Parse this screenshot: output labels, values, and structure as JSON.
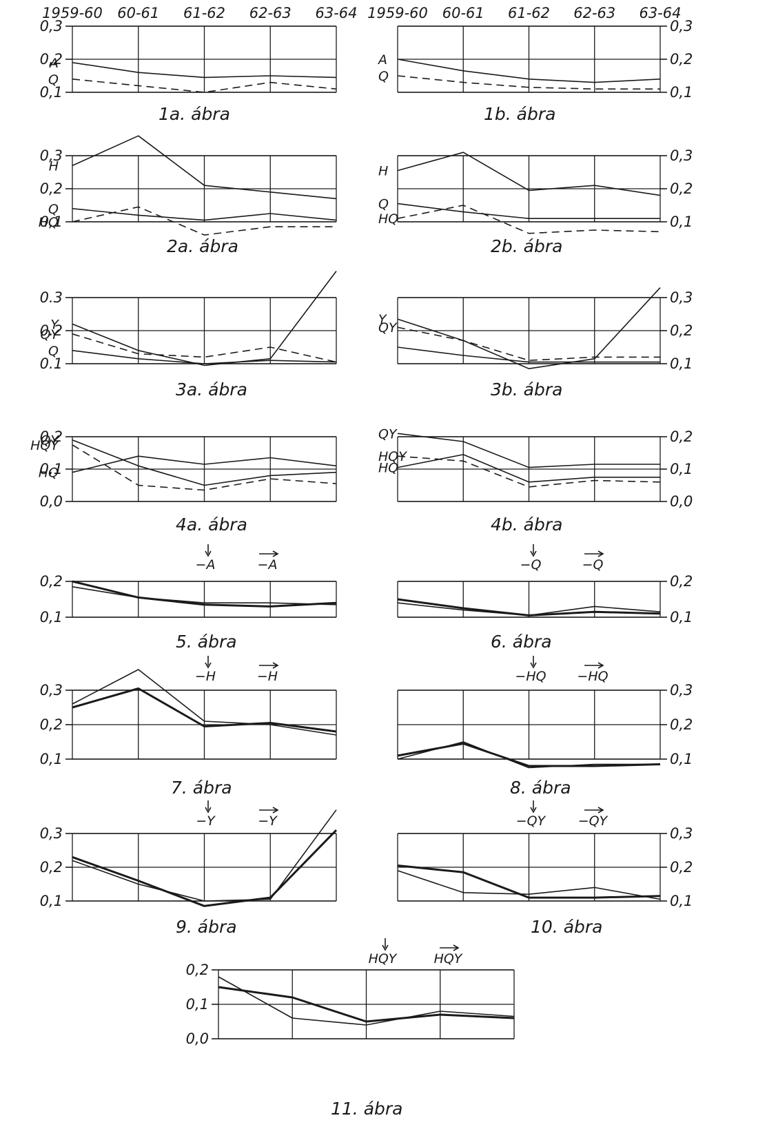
{
  "chart_data": [
    {
      "id": "1a",
      "type": "line",
      "caption": "1a. ábra",
      "x_labels": [
        "1959-60",
        "60-61",
        "61-62",
        "62-63",
        "63-64"
      ],
      "ylim": [
        0.1,
        0.3
      ],
      "y_ticks": [
        "0,1",
        "0,2",
        "0,3"
      ],
      "axis_side": "left",
      "series": [
        {
          "name": "A",
          "style": "solid",
          "values": [
            0.19,
            0.16,
            0.145,
            0.15,
            0.145
          ]
        },
        {
          "name": "Q",
          "style": "dashed",
          "values": [
            0.14,
            0.12,
            0.1,
            0.13,
            0.11
          ]
        }
      ]
    },
    {
      "id": "1b",
      "type": "line",
      "caption": "1b. ábra",
      "x_labels": [
        "1959-60",
        "60-61",
        "61-62",
        "62-63",
        "63-64"
      ],
      "ylim": [
        0.1,
        0.3
      ],
      "y_ticks": [
        "0,1",
        "0,2",
        "0,3"
      ],
      "axis_side": "right",
      "series": [
        {
          "name": "A",
          "style": "solid",
          "values": [
            0.2,
            0.165,
            0.14,
            0.13,
            0.14
          ]
        },
        {
          "name": "Q",
          "style": "dashed",
          "values": [
            0.15,
            0.13,
            0.115,
            0.11,
            0.11
          ]
        }
      ]
    },
    {
      "id": "2a",
      "type": "line",
      "caption": "2a. ábra",
      "ylim": [
        0.1,
        0.3
      ],
      "y_ticks": [
        "0,1",
        "0,2",
        "0,3"
      ],
      "axis_side": "left",
      "series": [
        {
          "name": "H",
          "style": "solid",
          "values": [
            0.27,
            0.36,
            0.21,
            0.19,
            0.17
          ]
        },
        {
          "name": "Q",
          "style": "solid",
          "values": [
            0.14,
            0.12,
            0.105,
            0.125,
            0.105
          ]
        },
        {
          "name": "HQ",
          "style": "dashed",
          "values": [
            0.1,
            0.145,
            0.06,
            0.085,
            0.085
          ]
        }
      ]
    },
    {
      "id": "2b",
      "type": "line",
      "caption": "2b. ábra",
      "ylim": [
        0.1,
        0.3
      ],
      "y_ticks": [
        "0,1",
        "0,2",
        "0,3"
      ],
      "axis_side": "right",
      "series": [
        {
          "name": "H",
          "style": "solid",
          "values": [
            0.255,
            0.31,
            0.195,
            0.21,
            0.18
          ]
        },
        {
          "name": "Q",
          "style": "solid",
          "values": [
            0.155,
            0.13,
            0.11,
            0.11,
            0.11
          ]
        },
        {
          "name": "HQ",
          "style": "dashed",
          "values": [
            0.11,
            0.15,
            0.065,
            0.075,
            0.07
          ]
        }
      ]
    },
    {
      "id": "3a",
      "type": "line",
      "caption": "3a. ábra",
      "ylim": [
        0.1,
        0.3
      ],
      "y_ticks": [
        "0.1",
        "0.2",
        "0.3"
      ],
      "axis_side": "left",
      "series": [
        {
          "name": "Y",
          "style": "solid",
          "values": [
            0.22,
            0.14,
            0.095,
            0.115,
            0.38
          ]
        },
        {
          "name": "QY",
          "style": "dashed",
          "values": [
            0.19,
            0.13,
            0.12,
            0.15,
            0.105
          ]
        },
        {
          "name": "Q",
          "style": "solid",
          "values": [
            0.14,
            0.115,
            0.1,
            0.11,
            0.105
          ]
        }
      ]
    },
    {
      "id": "3b",
      "type": "line",
      "caption": "3b. ábra",
      "ylim": [
        0.1,
        0.3
      ],
      "y_ticks": [
        "0,1",
        "0,2",
        "0,3"
      ],
      "axis_side": "right",
      "series": [
        {
          "name": "Y",
          "style": "solid",
          "values": [
            0.235,
            0.17,
            0.085,
            0.115,
            0.33
          ]
        },
        {
          "name": "QY",
          "style": "dashed",
          "values": [
            0.21,
            0.17,
            0.11,
            0.12,
            0.12
          ]
        },
        {
          "name": "",
          "style": "solid",
          "values": [
            0.15,
            0.125,
            0.105,
            0.105,
            0.105
          ]
        }
      ]
    },
    {
      "id": "4a",
      "type": "line",
      "caption": "4a. ábra",
      "ylim": [
        0.0,
        0.2
      ],
      "y_ticks": [
        "0,0",
        "0,1",
        "0,2"
      ],
      "axis_side": "left",
      "series": [
        {
          "name": "QY",
          "style": "solid",
          "values": [
            0.19,
            0.11,
            0.05,
            0.08,
            0.09
          ]
        },
        {
          "name": "HQY",
          "style": "dashed",
          "values": [
            0.175,
            0.05,
            0.035,
            0.07,
            0.055
          ]
        },
        {
          "name": "HQ",
          "style": "solid",
          "values": [
            0.09,
            0.14,
            0.115,
            0.135,
            0.11
          ]
        }
      ]
    },
    {
      "id": "4b",
      "type": "line",
      "caption": "4b. ábra",
      "ylim": [
        0.0,
        0.2
      ],
      "y_ticks": [
        "0,0",
        "0,1",
        "0,2"
      ],
      "axis_side": "right",
      "series": [
        {
          "name": "QY",
          "style": "solid",
          "values": [
            0.21,
            0.185,
            0.105,
            0.115,
            0.115
          ]
        },
        {
          "name": "HQY",
          "style": "dashed",
          "values": [
            0.14,
            0.125,
            0.045,
            0.065,
            0.06
          ]
        },
        {
          "name": "HQ",
          "style": "solid",
          "values": [
            0.105,
            0.145,
            0.06,
            0.075,
            0.075
          ]
        }
      ]
    },
    {
      "id": "5",
      "type": "line",
      "caption": "5. ábra",
      "ylim": [
        0.1,
        0.2
      ],
      "y_ticks": [
        "0,1",
        "0,2"
      ],
      "axis_side": "left",
      "header_labels": [
        "−A",
        "−A"
      ],
      "series": [
        {
          "name": "−A (↓)",
          "style": "thin",
          "values": [
            0.185,
            0.155,
            0.14,
            0.14,
            0.135
          ]
        },
        {
          "name": "−A (→)",
          "style": "thick",
          "values": [
            0.2,
            0.155,
            0.135,
            0.13,
            0.14
          ]
        }
      ]
    },
    {
      "id": "6",
      "type": "line",
      "caption": "6. ábra",
      "ylim": [
        0.1,
        0.2
      ],
      "y_ticks": [
        "0,1",
        "0,2"
      ],
      "axis_side": "right",
      "header_labels": [
        "−Q",
        "−Q"
      ],
      "series": [
        {
          "name": "−Q (↓)",
          "style": "thin",
          "values": [
            0.14,
            0.12,
            0.105,
            0.13,
            0.115
          ]
        },
        {
          "name": "−Q (→)",
          "style": "thick",
          "values": [
            0.15,
            0.125,
            0.105,
            0.115,
            0.11
          ]
        }
      ]
    },
    {
      "id": "7",
      "type": "line",
      "caption": "7. ábra",
      "ylim": [
        0.1,
        0.3
      ],
      "y_ticks": [
        "0,1",
        "0,2",
        "0,3"
      ],
      "axis_side": "left",
      "header_labels": [
        "−H",
        "−H"
      ],
      "series": [
        {
          "name": "−H (↓)",
          "style": "thin",
          "values": [
            0.26,
            0.36,
            0.21,
            0.2,
            0.17
          ]
        },
        {
          "name": "−H (→)",
          "style": "thick",
          "values": [
            0.25,
            0.305,
            0.195,
            0.205,
            0.18
          ]
        }
      ]
    },
    {
      "id": "8",
      "type": "line",
      "caption": "8. ábra",
      "ylim": [
        0.1,
        0.3
      ],
      "y_ticks": [
        "0,1",
        "0,2",
        "0,3"
      ],
      "axis_side": "right",
      "header_labels": [
        "−HQ",
        "−HQ"
      ],
      "series": [
        {
          "name": "−HQ (↓)",
          "style": "thin",
          "values": [
            0.1,
            0.15,
            0.075,
            0.085,
            0.085
          ]
        },
        {
          "name": "−HQ (→)",
          "style": "thick",
          "values": [
            0.11,
            0.145,
            0.08,
            0.08,
            0.085
          ]
        }
      ]
    },
    {
      "id": "9",
      "type": "line",
      "caption": "9. ábra",
      "ylim": [
        0.1,
        0.3
      ],
      "y_ticks": [
        "0,1",
        "0,2",
        "0,3"
      ],
      "axis_side": "left",
      "header_labels": [
        "−Y",
        "−Y"
      ],
      "series": [
        {
          "name": "−Y (↓)",
          "style": "thin",
          "values": [
            0.22,
            0.15,
            0.1,
            0.105,
            0.37
          ]
        },
        {
          "name": "−Y (→)",
          "style": "thick",
          "values": [
            0.23,
            0.16,
            0.085,
            0.11,
            0.31
          ]
        }
      ]
    },
    {
      "id": "10",
      "type": "line",
      "caption": "10. ábra",
      "ylim": [
        0.1,
        0.3
      ],
      "y_ticks": [
        "0,1",
        "0,2",
        "0,3"
      ],
      "axis_side": "right",
      "header_labels": [
        "−QY",
        "−QY"
      ],
      "series": [
        {
          "name": "−QY (↓)",
          "style": "thin",
          "values": [
            0.19,
            0.125,
            0.12,
            0.14,
            0.105
          ]
        },
        {
          "name": "−QY (→)",
          "style": "thick",
          "values": [
            0.205,
            0.185,
            0.11,
            0.11,
            0.115
          ]
        }
      ]
    },
    {
      "id": "11",
      "type": "line",
      "caption": "11. ábra",
      "ylim": [
        0.0,
        0.2
      ],
      "y_ticks": [
        "0,0",
        "0,1",
        "0,2"
      ],
      "axis_side": "left",
      "header_labels": [
        "HQY",
        "HQY"
      ],
      "series": [
        {
          "name": "HQY (↓)",
          "style": "thin",
          "values": [
            0.18,
            0.06,
            0.04,
            0.08,
            0.065
          ]
        },
        {
          "name": "HQY (→)",
          "style": "thick",
          "values": [
            0.15,
            0.12,
            0.05,
            0.07,
            0.06
          ]
        }
      ]
    }
  ]
}
